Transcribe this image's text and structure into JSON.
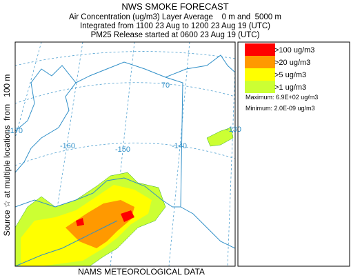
{
  "header": {
    "title": "NWS SMOKE FORECAST",
    "lines": [
      "Air Concentration (ug/m3) Layer Average    0 m and  5000 m",
      "Integrated from 1100 23 Aug to 1200 23 Aug 19 (UTC)",
      "PM25 Release started at 0600 23 Aug 19 (UTC)"
    ]
  },
  "side_label": "Source ☆ at multiple locations  from   100 m",
  "footer": "NAMS METEOROLOGICAL DATA",
  "legend": {
    "items": [
      {
        "label": ">100 ug/m3",
        "color": "#ff0000"
      },
      {
        "label": ">20 ug/m3",
        "color": "#ff9900"
      },
      {
        "label": ">5 ug/m3",
        "color": "#ffff00"
      },
      {
        "label": ">1 ug/m3",
        "color": "#ccff33"
      }
    ],
    "maximum": "Maximum: 6.9E+02 ug/m3",
    "minimum": "Minimum: 2.0E-09 ug/m3"
  },
  "map": {
    "graticule_labels": [
      "-170",
      "-160",
      "-150",
      "-140",
      "-130",
      "70"
    ]
  }
}
